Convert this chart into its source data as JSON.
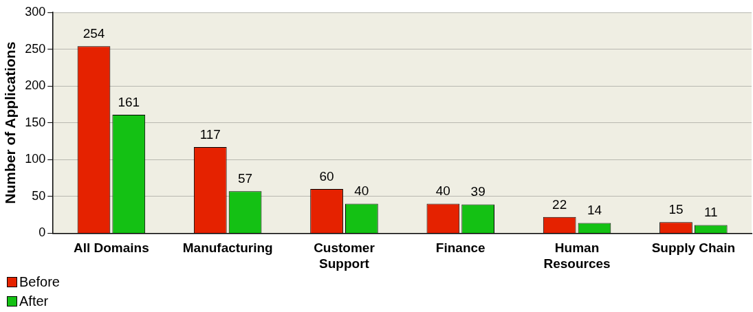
{
  "chart_data": {
    "type": "bar",
    "ylabel": "Number of Applications",
    "categories": [
      "All Domains",
      "Manufacturing",
      "Customer Support",
      "Finance",
      "Human Resources",
      "Supply Chain"
    ],
    "series": [
      {
        "name": "Before",
        "color": "#e52200",
        "values": [
          254,
          117,
          60,
          40,
          22,
          15
        ]
      },
      {
        "name": "After",
        "color": "#14c114",
        "values": [
          161,
          57,
          40,
          39,
          14,
          11
        ]
      }
    ],
    "ylim": [
      0,
      300
    ],
    "yticks": [
      0,
      50,
      100,
      150,
      200,
      250,
      300
    ],
    "grid": "y",
    "legend": "bottom left",
    "data_labels": true
  }
}
